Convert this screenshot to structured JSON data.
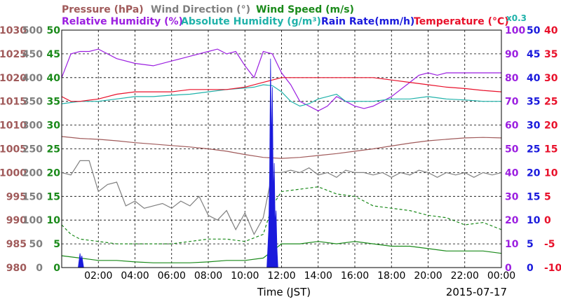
{
  "chart_data": {
    "type": "line",
    "date_label": "2015-07-17",
    "xlabel": "Time (JST)",
    "x_ticks": [
      "02:00",
      "04:00",
      "06:00",
      "08:00",
      "10:00",
      "12:00",
      "14:00",
      "16:00",
      "18:00",
      "20:00",
      "22:00",
      "00:00"
    ],
    "x_range_hours": [
      0,
      24
    ],
    "grid": true,
    "legend": {
      "row1": [
        {
          "text": "Pressure (hPa)",
          "color": "#a05a5a"
        },
        {
          "text": "Wind Direction (°)",
          "color": "#808080"
        },
        {
          "text": "Wind Speed (m/s)",
          "color": "#1a8a1a"
        }
      ],
      "row2": [
        {
          "text": "Relative Humidity (%)",
          "color": "#9b1fe0"
        },
        {
          "text": "Absolute Humidity (g/m³)",
          "color": "#20b2aa"
        },
        {
          "text": "Rain Rate(mm/h)",
          "color": "#1a1adc"
        },
        {
          "text": "Temperature (°C)",
          "color": "#e8102a"
        }
      ],
      "abs_humidity_scale": "x0.3"
    },
    "axes": [
      {
        "name": "pressure",
        "unit": "hPa",
        "ticks": [
          "1030",
          "1025",
          "1020",
          "1015",
          "1010",
          "1005",
          "1000",
          "995",
          "990",
          "985",
          "980"
        ],
        "ylim": [
          980,
          1030
        ],
        "color": "#a05a5a"
      },
      {
        "name": "wind_direction",
        "unit": "°",
        "ticks": [
          "500",
          "450",
          "400",
          "350",
          "300",
          "250",
          "200",
          "150",
          "100",
          "50",
          "0"
        ],
        "ylim": [
          0,
          500
        ],
        "color": "#808080"
      },
      {
        "name": "wind_speed",
        "unit": "m/s",
        "ticks": [
          "50",
          "45",
          "40",
          "35",
          "30",
          "25",
          "20",
          "15",
          "10",
          "5",
          "0"
        ],
        "ylim": [
          0,
          50
        ],
        "color": "#1a8a1a"
      },
      {
        "name": "relative_humidity",
        "unit": "%",
        "ticks": [
          "100",
          "90",
          "80",
          "70",
          "60",
          "50",
          "40",
          "30",
          "20",
          "10",
          "0"
        ],
        "ylim": [
          0,
          100
        ],
        "color": "#9b1fe0"
      },
      {
        "name": "rain_rate",
        "unit": "mm/h",
        "ticks": [
          "50",
          "45",
          "40",
          "35",
          "30",
          "25",
          "20",
          "15",
          "10",
          "5",
          "0"
        ],
        "ylim": [
          0,
          50
        ],
        "color": "#1a1adc"
      },
      {
        "name": "temperature",
        "unit": "°C",
        "ticks": [
          "40",
          "35",
          "30",
          "25",
          "20",
          "15",
          "10",
          "5",
          "0",
          "-5",
          "-10"
        ],
        "ylim": [
          -10,
          40
        ],
        "color": "#e8102a"
      }
    ],
    "series": [
      {
        "name": "Pressure",
        "axis": "pressure",
        "color": "#a05a5a",
        "style": "solid",
        "x": [
          0,
          1,
          2,
          3,
          4,
          5,
          6,
          7,
          8,
          9,
          10,
          11,
          12,
          13,
          14,
          15,
          16,
          17,
          18,
          19,
          20,
          21,
          22,
          23,
          24
        ],
        "y": [
          1007.6,
          1007.2,
          1007.0,
          1006.7,
          1006.3,
          1006.0,
          1005.7,
          1005.4,
          1005.0,
          1004.5,
          1003.8,
          1003.2,
          1003.0,
          1003.2,
          1003.6,
          1004.0,
          1004.5,
          1005.0,
          1005.6,
          1006.2,
          1006.7,
          1007.0,
          1007.3,
          1007.4,
          1007.3
        ]
      },
      {
        "name": "Wind Direction",
        "axis": "wind_direction",
        "color": "#808080",
        "style": "solid",
        "x": [
          0,
          0.5,
          1,
          1.5,
          2,
          2.5,
          3,
          3.5,
          4,
          4.5,
          5,
          5.5,
          6,
          6.5,
          7,
          7.5,
          8,
          8.5,
          9,
          9.5,
          10,
          10.5,
          11,
          11.5,
          12,
          12.5,
          13,
          13.5,
          14,
          14.5,
          15,
          15.5,
          16,
          16.5,
          17,
          17.5,
          18,
          18.5,
          19,
          19.5,
          20,
          20.5,
          21,
          21.5,
          22,
          22.5,
          23,
          23.5,
          24
        ],
        "y": [
          200,
          195,
          225,
          225,
          160,
          175,
          180,
          130,
          140,
          125,
          130,
          135,
          125,
          140,
          130,
          150,
          110,
          100,
          120,
          80,
          115,
          70,
          105,
          200,
          200,
          205,
          200,
          210,
          195,
          200,
          190,
          205,
          200,
          200,
          195,
          200,
          190,
          200,
          195,
          205,
          200,
          190,
          200,
          195,
          200,
          190,
          200,
          195,
          200
        ]
      },
      {
        "name": "Wind Speed (mean)",
        "axis": "wind_speed",
        "color": "#1a8a1a",
        "style": "solid",
        "x": [
          0,
          1,
          2,
          3,
          4,
          5,
          6,
          7,
          8,
          9,
          10,
          11,
          11.5,
          12,
          13,
          14,
          15,
          16,
          17,
          18,
          19,
          20,
          21,
          22,
          23,
          24
        ],
        "y": [
          2.5,
          2.0,
          1.5,
          1.5,
          1.2,
          1.0,
          1.0,
          1.0,
          1.2,
          1.5,
          1.5,
          2.0,
          3.5,
          5.0,
          5.0,
          5.5,
          5.0,
          5.5,
          5.0,
          4.5,
          4.5,
          4.0,
          3.5,
          3.5,
          3.5,
          3.0
        ]
      },
      {
        "name": "Wind Speed (gust)",
        "axis": "wind_speed",
        "color": "#1a8a1a",
        "style": "dashed",
        "x": [
          0,
          0.5,
          1,
          2,
          3,
          4,
          5,
          6,
          7,
          8,
          9,
          10,
          11,
          11.5,
          12,
          13,
          14,
          15,
          16,
          17,
          18,
          19,
          20,
          21,
          22,
          23,
          24
        ],
        "y": [
          9,
          7,
          6,
          5.5,
          5,
          5,
          5,
          5,
          5.5,
          6,
          6,
          5.5,
          7,
          13,
          16,
          16.5,
          17,
          15.5,
          15,
          13,
          12.5,
          12,
          11,
          10.5,
          9,
          9.5,
          8
        ]
      },
      {
        "name": "Relative Humidity",
        "axis": "relative_humidity",
        "color": "#9b1fe0",
        "style": "solid",
        "x": [
          0,
          0.5,
          1,
          1.5,
          2,
          3,
          4,
          5,
          6,
          7,
          8,
          8.5,
          9,
          9.5,
          10,
          10.5,
          11,
          11.5,
          12,
          12.5,
          13,
          13.5,
          14,
          14.5,
          15,
          15.5,
          16,
          16.5,
          17,
          17.5,
          18,
          18.5,
          19,
          19.5,
          20,
          20.5,
          21,
          22,
          23,
          24
        ],
        "y": [
          80,
          90,
          91,
          91,
          92,
          88,
          86,
          85,
          87,
          89,
          91,
          92,
          90,
          91,
          85,
          80,
          91,
          90,
          82,
          77,
          70,
          68,
          66,
          68,
          72,
          70,
          68,
          67,
          68,
          70,
          72,
          75,
          78,
          81,
          82,
          81,
          82,
          82,
          82,
          82
        ]
      },
      {
        "name": "Absolute Humidity",
        "axis": "temperature",
        "color": "#20b2aa",
        "style": "solid",
        "x": [
          0,
          1,
          2,
          3,
          4,
          5,
          6,
          7,
          8,
          9,
          10,
          10.5,
          11,
          11.5,
          12,
          12.5,
          13,
          13.5,
          14,
          14.5,
          15,
          15.5,
          16,
          17,
          18,
          19,
          20,
          21,
          22,
          23,
          24
        ],
        "y": [
          24.5,
          25,
          25,
          25.5,
          26,
          26,
          26.3,
          26.5,
          27,
          27.5,
          27.8,
          28,
          28.5,
          28.3,
          27,
          25,
          24,
          24.5,
          25.5,
          26,
          26.5,
          25,
          25,
          25,
          25.5,
          25.5,
          26,
          25.5,
          25.3,
          25,
          25
        ]
      },
      {
        "name": "Temperature",
        "axis": "temperature",
        "color": "#e8102a",
        "style": "solid",
        "x": [
          0,
          0.5,
          1,
          2,
          3,
          4,
          5,
          6,
          7,
          8,
          9,
          10,
          11,
          11.5,
          12,
          13,
          14,
          15,
          16,
          17,
          18,
          19,
          20,
          21,
          22,
          23,
          24
        ],
        "y": [
          26,
          25,
          25,
          25.5,
          26.5,
          27,
          27,
          27,
          27.5,
          27.5,
          27.5,
          28,
          29,
          29.5,
          30,
          30,
          30,
          30,
          30,
          30,
          29.5,
          29,
          28.5,
          28,
          27.7,
          27.3,
          27
        ]
      },
      {
        "name": "Rain Rate",
        "axis": "rain_rate",
        "color": "#1a1adc",
        "style": "fill",
        "x": [
          0,
          0.9,
          1.0,
          1.05,
          1.1,
          1.2,
          11.2,
          11.3,
          11.35,
          11.4,
          11.45,
          11.5,
          11.55,
          11.6,
          11.65,
          11.7,
          11.75,
          11.8,
          24
        ],
        "y": [
          0,
          0,
          3,
          1.5,
          2.5,
          0,
          0,
          8,
          20,
          44,
          25,
          38,
          15,
          22,
          9,
          12,
          4,
          0,
          0
        ]
      }
    ]
  }
}
